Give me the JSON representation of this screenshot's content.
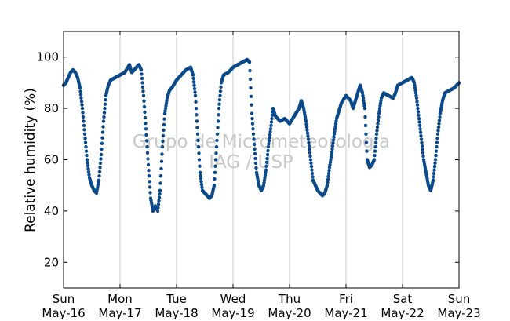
{
  "chart_data": {
    "type": "scatter",
    "title": "",
    "xlabel": "",
    "ylabel": "Relative humidity (%)",
    "ylim": [
      10,
      110
    ],
    "xlim": [
      "2010-05-16",
      "2010-05-23"
    ],
    "y_ticks": [
      20,
      40,
      60,
      80,
      100
    ],
    "x_ticks": [
      {
        "day": "Sun",
        "date": "May-16"
      },
      {
        "day": "Mon",
        "date": "May-17"
      },
      {
        "day": "Tue",
        "date": "May-18"
      },
      {
        "day": "Wed",
        "date": "May-19"
      },
      {
        "day": "Thu",
        "date": "May-20"
      },
      {
        "day": "Fri",
        "date": "May-21"
      },
      {
        "day": "Sat",
        "date": "May-22"
      },
      {
        "day": "Sun",
        "date": "May-23"
      }
    ],
    "grid": "vertical",
    "marker_color": "#0b4a8a",
    "watermark": [
      "Grupo de Micrometeorologia",
      "IAG / USP"
    ],
    "series": [
      {
        "points": [
          [
            "05-16 00:00",
            89
          ],
          [
            "05-16 01:00",
            90
          ],
          [
            "05-16 02:00",
            92
          ],
          [
            "05-16 03:00",
            94
          ],
          [
            "05-16 04:00",
            95
          ],
          [
            "05-16 05:00",
            94
          ],
          [
            "05-16 06:00",
            92
          ],
          [
            "05-16 07:00",
            88
          ],
          [
            "05-16 08:00",
            80
          ],
          [
            "05-16 09:00",
            70
          ],
          [
            "05-16 10:00",
            60
          ],
          [
            "05-16 11:00",
            53
          ],
          [
            "05-16 12:00",
            50
          ],
          [
            "05-16 13:00",
            48
          ],
          [
            "05-16 14:00",
            47
          ],
          [
            "05-16 15:00",
            52
          ],
          [
            "05-16 16:00",
            62
          ],
          [
            "05-16 17:00",
            75
          ],
          [
            "05-16 18:00",
            85
          ],
          [
            "05-16 19:00",
            89
          ],
          [
            "05-16 20:00",
            91
          ],
          [
            "05-16 22:00",
            92
          ],
          [
            "05-17 00:00",
            93
          ],
          [
            "05-17 02:00",
            94
          ],
          [
            "05-17 04:00",
            97
          ],
          [
            "05-17 05:00",
            94
          ],
          [
            "05-17 06:00",
            95
          ],
          [
            "05-17 08:00",
            97
          ],
          [
            "05-17 09:00",
            95
          ],
          [
            "05-17 10:00",
            85
          ],
          [
            "05-17 11:00",
            72
          ],
          [
            "05-17 12:00",
            58
          ],
          [
            "05-17 13:00",
            45
          ],
          [
            "05-17 14:00",
            40
          ],
          [
            "05-17 15:00",
            42
          ],
          [
            "05-17 16:00",
            40
          ],
          [
            "05-17 17:00",
            48
          ],
          [
            "05-17 18:00",
            65
          ],
          [
            "05-17 19:00",
            78
          ],
          [
            "05-17 20:00",
            84
          ],
          [
            "05-17 21:00",
            87
          ],
          [
            "05-17 22:00",
            88
          ],
          [
            "05-18 00:00",
            91
          ],
          [
            "05-18 02:00",
            93
          ],
          [
            "05-18 04:00",
            95
          ],
          [
            "05-18 06:00",
            96
          ],
          [
            "05-18 07:00",
            93
          ],
          [
            "05-18 08:00",
            85
          ],
          [
            "05-18 09:00",
            70
          ],
          [
            "05-18 10:00",
            55
          ],
          [
            "05-18 11:00",
            48
          ],
          [
            "05-18 12:00",
            47
          ],
          [
            "05-18 13:00",
            46
          ],
          [
            "05-18 14:00",
            45
          ],
          [
            "05-18 15:00",
            46
          ],
          [
            "05-18 16:00",
            50
          ],
          [
            "05-18 17:00",
            65
          ],
          [
            "05-18 18:00",
            80
          ],
          [
            "05-18 19:00",
            90
          ],
          [
            "05-18 20:00",
            93
          ],
          [
            "05-18 22:00",
            94
          ],
          [
            "05-19 00:00",
            96
          ],
          [
            "05-19 02:00",
            97
          ],
          [
            "05-19 04:00",
            98
          ],
          [
            "05-19 06:00",
            99
          ],
          [
            "05-19 07:00",
            98
          ],
          [
            "05-19 08:00",
            78
          ],
          [
            "05-19 09:00",
            66
          ],
          [
            "05-19 10:00",
            55
          ],
          [
            "05-19 11:00",
            50
          ],
          [
            "05-19 12:00",
            48
          ],
          [
            "05-19 13:00",
            50
          ],
          [
            "05-19 14:00",
            56
          ],
          [
            "05-19 15:00",
            65
          ],
          [
            "05-19 16:00",
            72
          ],
          [
            "05-19 17:00",
            80
          ],
          [
            "05-19 18:00",
            77
          ],
          [
            "05-19 20:00",
            75
          ],
          [
            "05-19 22:00",
            76
          ],
          [
            "05-20 00:00",
            74
          ],
          [
            "05-20 02:00",
            77
          ],
          [
            "05-20 04:00",
            80
          ],
          [
            "05-20 05:00",
            83
          ],
          [
            "05-20 06:00",
            80
          ],
          [
            "05-20 07:00",
            75
          ],
          [
            "05-20 08:00",
            68
          ],
          [
            "05-20 09:00",
            60
          ],
          [
            "05-20 10:00",
            52
          ],
          [
            "05-20 11:00",
            50
          ],
          [
            "05-20 12:00",
            48
          ],
          [
            "05-20 13:00",
            47
          ],
          [
            "05-20 14:00",
            46
          ],
          [
            "05-20 15:00",
            47
          ],
          [
            "05-20 16:00",
            50
          ],
          [
            "05-20 17:00",
            57
          ],
          [
            "05-20 18:00",
            63
          ],
          [
            "05-20 19:00",
            70
          ],
          [
            "05-20 20:00",
            76
          ],
          [
            "05-20 22:00",
            82
          ],
          [
            "05-21 00:00",
            85
          ],
          [
            "05-21 02:00",
            83
          ],
          [
            "05-21 03:00",
            80
          ],
          [
            "05-21 05:00",
            86
          ],
          [
            "05-21 06:00",
            89
          ],
          [
            "05-21 07:00",
            86
          ],
          [
            "05-21 08:00",
            80
          ],
          [
            "05-21 09:00",
            60
          ],
          [
            "05-21 10:00",
            57
          ],
          [
            "05-21 11:00",
            58
          ],
          [
            "05-21 12:00",
            60
          ],
          [
            "05-21 13:00",
            70
          ],
          [
            "05-21 14:00",
            78
          ],
          [
            "05-21 15:00",
            84
          ],
          [
            "05-21 16:00",
            86
          ],
          [
            "05-21 18:00",
            85
          ],
          [
            "05-21 20:00",
            84
          ],
          [
            "05-21 21:00",
            86
          ],
          [
            "05-21 22:00",
            89
          ],
          [
            "05-22 00:00",
            90
          ],
          [
            "05-22 02:00",
            91
          ],
          [
            "05-22 04:00",
            92
          ],
          [
            "05-22 05:00",
            90
          ],
          [
            "05-22 06:00",
            84
          ],
          [
            "05-22 07:00",
            76
          ],
          [
            "05-22 08:00",
            68
          ],
          [
            "05-22 09:00",
            60
          ],
          [
            "05-22 10:00",
            55
          ],
          [
            "05-22 11:00",
            50
          ],
          [
            "05-22 12:00",
            48
          ],
          [
            "05-22 13:00",
            52
          ],
          [
            "05-22 14:00",
            60
          ],
          [
            "05-22 15:00",
            70
          ],
          [
            "05-22 16:00",
            78
          ],
          [
            "05-22 17:00",
            83
          ],
          [
            "05-22 18:00",
            86
          ],
          [
            "05-22 20:00",
            87
          ],
          [
            "05-22 22:00",
            88
          ],
          [
            "05-23 00:00",
            90
          ]
        ]
      }
    ]
  }
}
